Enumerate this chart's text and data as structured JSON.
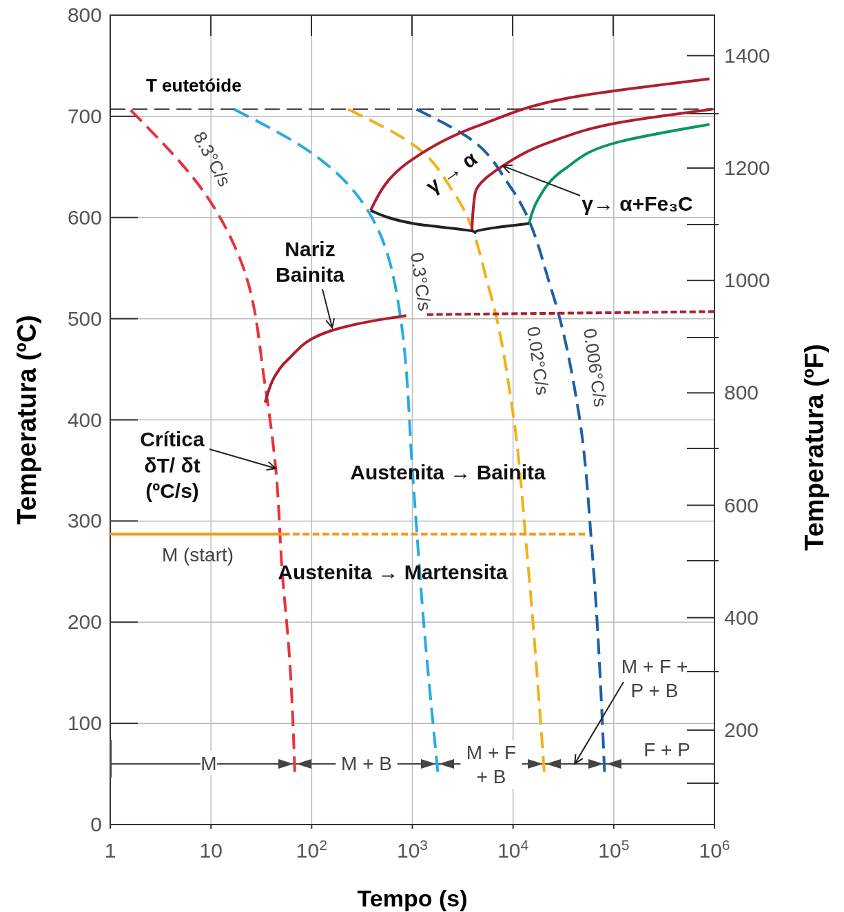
{
  "chart_data": {
    "type": "line",
    "xlabel": "Tempo (s)",
    "ylabel": "Temperatura (ºC)",
    "y2label": "Temperatura (ºF)",
    "log": "x",
    "grid": true,
    "legend": false,
    "marker": "none",
    "xlim": [
      1,
      1000000
    ],
    "xticks": [
      1,
      10,
      {
        "value": 100,
        "label": "10$^{2}$"
      },
      {
        "value": 1000,
        "label": "10$^{3}$"
      },
      {
        "value": 10000,
        "label": "10$^{4}$"
      },
      {
        "value": 100000,
        "label": "10$^{5}$"
      },
      {
        "value": 1000000,
        "label": "10$^{6}$"
      }
    ],
    "ylim": [
      0,
      800
    ],
    "yticks": [
      0,
      100,
      200,
      300,
      400,
      500,
      600,
      700,
      800
    ],
    "y2lim": [
      32,
      1472
    ],
    "y2ticks": [
      200,
      400,
      600,
      800,
      1000,
      1200,
      1400
    ],
    "series": [
      {
        "name": "8.3°C/s",
        "color": "#e8323c",
        "line_style": "dashed",
        "x": [
          1.6,
          9.1,
          20,
          34.5,
          44,
          51,
          60,
          68
        ],
        "values": [
          706,
          621,
          556,
          434,
          352,
          250,
          168,
          52
        ]
      },
      {
        "name": "0.3°C/s",
        "color": "#2aaae2",
        "line_style": "dashed",
        "x": [
          17,
          96,
          340,
          745,
          1020,
          1290,
          1790
        ],
        "values": [
          707,
          665,
          611,
          508,
          338,
          202,
          52
        ]
      },
      {
        "name": "0.02°C/s",
        "color": "#f0b21a",
        "line_style": "dashed",
        "x": [
          230,
          1020,
          2600,
          5800,
          10000,
          13700,
          20400
        ],
        "values": [
          707,
          672,
          624,
          529,
          406,
          270,
          52
        ]
      },
      {
        "name": "0.006°C/s",
        "color": "#1d5fa6",
        "line_style": "dashed",
        "x": [
          1100,
          3600,
          9300,
          24000,
          45000,
          61000,
          81000
        ],
        "values": [
          707,
          679,
          631,
          529,
          406,
          270,
          52
        ]
      },
      {
        "color": "#b01e2e",
        "line_style": "solid",
        "x": [
          385,
          1020,
          4900,
          52000,
          890000
        ],
        "values": [
          607,
          658,
          692,
          721,
          737
        ]
      },
      {
        "color": "#b01e2e",
        "line_style": "solid",
        "x": [
          3900,
          4200,
          7900,
          24000,
          115000,
          960000
        ],
        "values": [
          587,
          624,
          651,
          675,
          694,
          707
        ]
      },
      {
        "color": "#0f9468",
        "line_style": "solid",
        "x": [
          14400,
          17500,
          32600,
          115000,
          890000
        ],
        "values": [
          594,
          617,
          648,
          675,
          692
        ]
      },
      {
        "color": "#222222",
        "line_style": "solid",
        "x": [
          385,
          1020,
          4200,
          14400
        ],
        "values": [
          607,
          594,
          585,
          594
        ]
      },
      {
        "color": "#b01e2e",
        "line_style": "solid",
        "x": [
          34.5,
          60,
          155,
          550,
          870
        ],
        "values": [
          417,
          461,
          488,
          500,
          503
        ]
      },
      {
        "color": "#b01e2e",
        "line_style": "dashed",
        "x": [
          1400,
          1000000
        ],
        "values": [
          504,
          507
        ]
      },
      {
        "color": "#f39a1e",
        "line_style": "solid",
        "x": [
          1,
          52
        ],
        "values": [
          287,
          287
        ]
      },
      {
        "color": "#f39a1e",
        "line_style": "dashed",
        "x": [
          52,
          52000
        ],
        "values": [
          287,
          287
        ]
      }
    ],
    "ref_lines": [
      {
        "axis": "y",
        "value": 707,
        "label": "T eutetóide",
        "line_style": "dashed",
        "color": "#222222"
      },
      {
        "axis": "y",
        "value": 60,
        "line_style": "solid",
        "color": "#444444"
      }
    ],
    "annotations": [
      "γ → α",
      {
        "text": "γ→ α+Fe₃C",
        "x": 7900,
        "y": 651
      },
      {
        "text": "Nariz\nBainita",
        "x": 160,
        "y": 491
      },
      {
        "text": "Crítica\nδT/ δt\n(ºC/s)",
        "x": 44,
        "y": 352
      },
      "Austenita → Bainita",
      "Austenita → Martensita",
      "M (start)",
      "M",
      "M + B",
      "M + F\n+ B",
      {
        "text": "M + F +\nP + B",
        "x": 41000,
        "y": 60
      },
      "F + P"
    ]
  }
}
